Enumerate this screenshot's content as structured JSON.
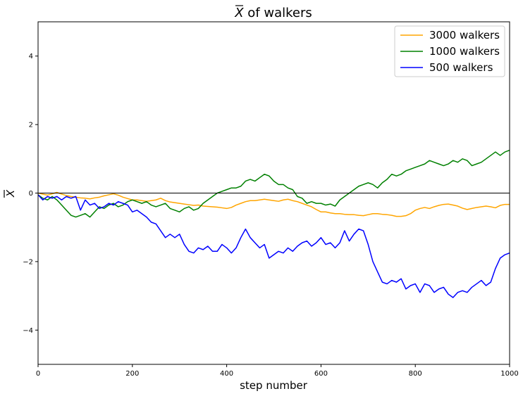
{
  "chart_data": {
    "type": "line",
    "title": {
      "symbol": "X",
      "text": " of walkers"
    },
    "xlabel": "step number",
    "ylabel": "X",
    "xlim": [
      0,
      1000
    ],
    "ylim": [
      -5,
      5
    ],
    "xticks": [
      0,
      200,
      400,
      600,
      800,
      1000
    ],
    "yticks": [
      -4,
      -2,
      0,
      2,
      4
    ],
    "ytick_labels": [
      "−4",
      "−2",
      "0",
      "2",
      "4"
    ],
    "grid": false,
    "reference_line_y": 0,
    "legend_position": "top-right",
    "series": [
      {
        "name": "3000 walkers",
        "color": "#ffa500",
        "x": [
          0,
          10,
          20,
          30,
          40,
          50,
          60,
          70,
          80,
          90,
          100,
          110,
          120,
          130,
          140,
          150,
          160,
          170,
          180,
          190,
          200,
          210,
          220,
          230,
          240,
          250,
          260,
          270,
          280,
          290,
          300,
          310,
          320,
          330,
          340,
          350,
          360,
          370,
          380,
          390,
          400,
          410,
          420,
          430,
          440,
          450,
          460,
          470,
          480,
          490,
          500,
          510,
          520,
          530,
          540,
          550,
          560,
          570,
          580,
          590,
          600,
          610,
          620,
          630,
          640,
          650,
          660,
          670,
          680,
          690,
          700,
          710,
          720,
          730,
          740,
          750,
          760,
          770,
          780,
          790,
          800,
          810,
          820,
          830,
          840,
          850,
          860,
          870,
          880,
          890,
          900,
          910,
          920,
          930,
          940,
          950,
          960,
          970,
          980,
          990,
          1000
        ],
        "y": [
          0,
          -0.03,
          -0.06,
          -0.02,
          0.02,
          -0.03,
          -0.07,
          -0.1,
          -0.12,
          -0.14,
          -0.15,
          -0.17,
          -0.14,
          -0.12,
          -0.08,
          -0.05,
          -0.02,
          -0.06,
          -0.12,
          -0.16,
          -0.2,
          -0.2,
          -0.22,
          -0.24,
          -0.22,
          -0.2,
          -0.15,
          -0.22,
          -0.26,
          -0.28,
          -0.3,
          -0.32,
          -0.34,
          -0.36,
          -0.35,
          -0.38,
          -0.39,
          -0.4,
          -0.41,
          -0.43,
          -0.45,
          -0.42,
          -0.35,
          -0.3,
          -0.25,
          -0.22,
          -0.22,
          -0.2,
          -0.18,
          -0.2,
          -0.22,
          -0.24,
          -0.2,
          -0.18,
          -0.22,
          -0.25,
          -0.3,
          -0.35,
          -0.4,
          -0.48,
          -0.55,
          -0.55,
          -0.58,
          -0.6,
          -0.6,
          -0.62,
          -0.63,
          -0.63,
          -0.65,
          -0.66,
          -0.63,
          -0.6,
          -0.6,
          -0.62,
          -0.63,
          -0.65,
          -0.68,
          -0.68,
          -0.66,
          -0.6,
          -0.5,
          -0.45,
          -0.42,
          -0.45,
          -0.4,
          -0.36,
          -0.33,
          -0.32,
          -0.35,
          -0.38,
          -0.44,
          -0.48,
          -0.45,
          -0.42,
          -0.4,
          -0.38,
          -0.4,
          -0.43,
          -0.36,
          -0.33,
          -0.33
        ]
      },
      {
        "name": "1000 walkers",
        "color": "#008000",
        "x": [
          0,
          10,
          20,
          30,
          40,
          50,
          60,
          70,
          80,
          90,
          100,
          110,
          120,
          130,
          140,
          150,
          160,
          170,
          180,
          190,
          200,
          210,
          220,
          230,
          240,
          250,
          260,
          270,
          280,
          290,
          300,
          310,
          320,
          330,
          340,
          350,
          360,
          370,
          380,
          390,
          400,
          410,
          420,
          430,
          440,
          450,
          460,
          470,
          480,
          490,
          500,
          510,
          520,
          530,
          540,
          550,
          560,
          570,
          580,
          590,
          600,
          610,
          620,
          630,
          640,
          650,
          660,
          670,
          680,
          690,
          700,
          710,
          720,
          730,
          740,
          750,
          760,
          770,
          780,
          790,
          800,
          810,
          820,
          830,
          840,
          850,
          860,
          870,
          880,
          890,
          900,
          910,
          920,
          930,
          940,
          950,
          960,
          970,
          980,
          990,
          1000
        ],
        "y": [
          -0.05,
          -0.15,
          -0.2,
          -0.1,
          -0.2,
          -0.35,
          -0.5,
          -0.65,
          -0.7,
          -0.65,
          -0.6,
          -0.7,
          -0.55,
          -0.4,
          -0.45,
          -0.35,
          -0.3,
          -0.4,
          -0.35,
          -0.25,
          -0.2,
          -0.25,
          -0.3,
          -0.25,
          -0.35,
          -0.4,
          -0.35,
          -0.3,
          -0.45,
          -0.5,
          -0.55,
          -0.45,
          -0.4,
          -0.5,
          -0.45,
          -0.3,
          -0.2,
          -0.1,
          0.0,
          0.05,
          0.1,
          0.15,
          0.15,
          0.2,
          0.35,
          0.4,
          0.35,
          0.45,
          0.55,
          0.5,
          0.35,
          0.25,
          0.25,
          0.15,
          0.1,
          -0.1,
          -0.15,
          -0.3,
          -0.25,
          -0.3,
          -0.3,
          -0.35,
          -0.32,
          -0.38,
          -0.2,
          -0.1,
          0.0,
          0.1,
          0.2,
          0.25,
          0.3,
          0.25,
          0.15,
          0.3,
          0.4,
          0.55,
          0.5,
          0.55,
          0.65,
          0.7,
          0.75,
          0.8,
          0.85,
          0.95,
          0.9,
          0.85,
          0.8,
          0.85,
          0.95,
          0.9,
          1.0,
          0.95,
          0.8,
          0.85,
          0.9,
          1.0,
          1.1,
          1.2,
          1.1,
          1.2,
          1.25
        ]
      },
      {
        "name": "500 walkers",
        "color": "#0000ff",
        "x": [
          0,
          10,
          20,
          30,
          40,
          50,
          60,
          70,
          80,
          90,
          100,
          110,
          120,
          130,
          140,
          150,
          160,
          170,
          180,
          190,
          200,
          210,
          220,
          230,
          240,
          250,
          260,
          270,
          280,
          290,
          300,
          310,
          320,
          330,
          340,
          350,
          360,
          370,
          380,
          390,
          400,
          410,
          420,
          430,
          440,
          450,
          460,
          470,
          480,
          490,
          500,
          510,
          520,
          530,
          540,
          550,
          560,
          570,
          580,
          590,
          600,
          610,
          620,
          630,
          640,
          650,
          660,
          670,
          680,
          690,
          700,
          710,
          720,
          730,
          740,
          750,
          760,
          770,
          780,
          790,
          800,
          810,
          820,
          830,
          840,
          850,
          860,
          870,
          880,
          890,
          900,
          910,
          920,
          930,
          940,
          950,
          960,
          970,
          980,
          990,
          1000
        ],
        "y": [
          -0.05,
          -0.2,
          -0.1,
          -0.15,
          -0.1,
          -0.2,
          -0.1,
          -0.15,
          -0.1,
          -0.5,
          -0.2,
          -0.35,
          -0.3,
          -0.45,
          -0.4,
          -0.3,
          -0.35,
          -0.25,
          -0.3,
          -0.35,
          -0.55,
          -0.5,
          -0.6,
          -0.7,
          -0.85,
          -0.9,
          -1.1,
          -1.3,
          -1.2,
          -1.3,
          -1.2,
          -1.5,
          -1.7,
          -1.75,
          -1.6,
          -1.65,
          -1.55,
          -1.7,
          -1.7,
          -1.5,
          -1.6,
          -1.75,
          -1.6,
          -1.3,
          -1.05,
          -1.3,
          -1.45,
          -1.6,
          -1.5,
          -1.9,
          -1.8,
          -1.7,
          -1.75,
          -1.6,
          -1.7,
          -1.55,
          -1.45,
          -1.4,
          -1.55,
          -1.45,
          -1.3,
          -1.5,
          -1.45,
          -1.6,
          -1.45,
          -1.1,
          -1.4,
          -1.2,
          -1.05,
          -1.1,
          -1.5,
          -2.0,
          -2.3,
          -2.6,
          -2.65,
          -2.55,
          -2.6,
          -2.5,
          -2.8,
          -2.7,
          -2.65,
          -2.9,
          -2.65,
          -2.7,
          -2.9,
          -2.8,
          -2.75,
          -2.95,
          -3.05,
          -2.9,
          -2.85,
          -2.9,
          -2.75,
          -2.65,
          -2.55,
          -2.7,
          -2.6,
          -2.2,
          -1.9,
          -1.8,
          -1.75
        ]
      }
    ]
  }
}
